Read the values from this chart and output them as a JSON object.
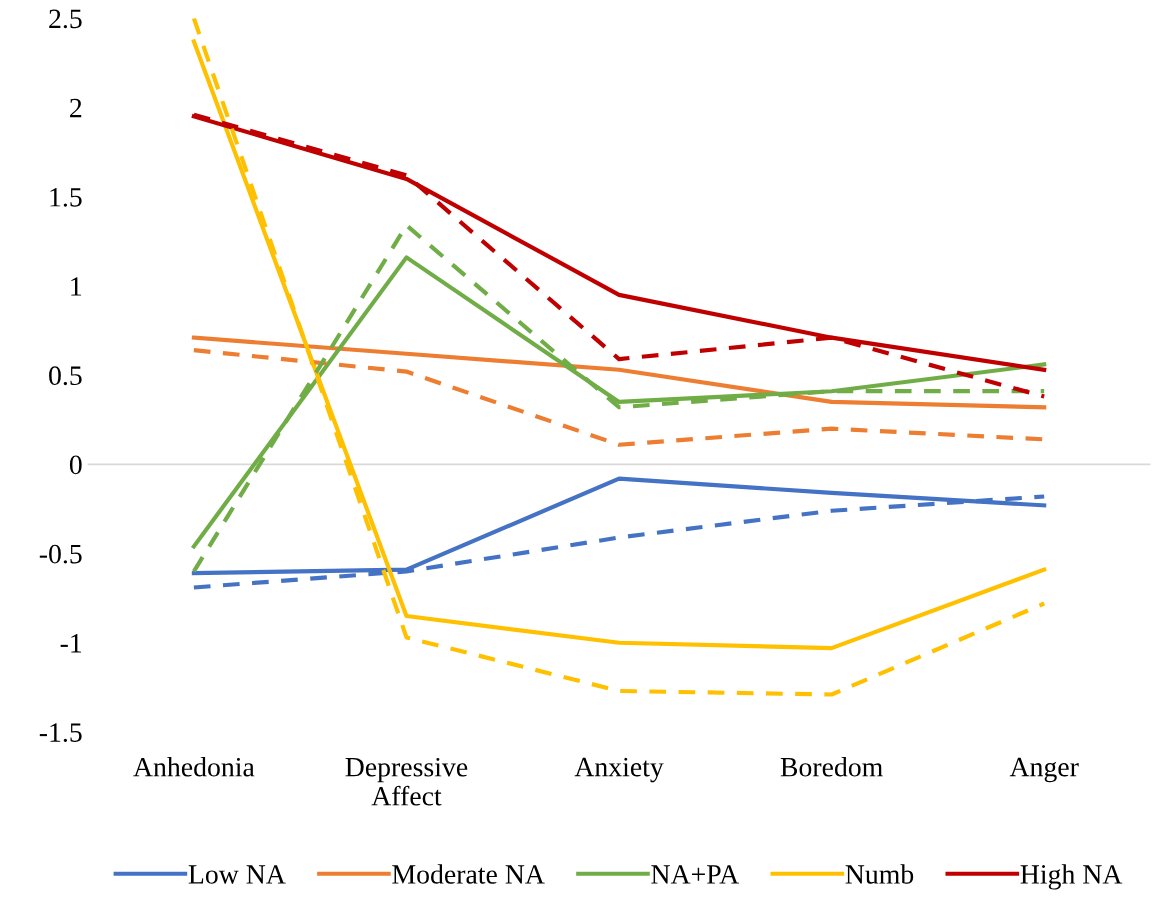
{
  "chart_data": {
    "type": "line",
    "categories": [
      "Anhedonia",
      "Depressive\nAffect",
      "Anxiety",
      "Boredom",
      "Anger"
    ],
    "series": [
      {
        "name": "Low NA",
        "color": "#4472c4",
        "line_style": "solid",
        "values": [
          -0.61,
          -0.59,
          -0.08,
          -0.16,
          -0.23
        ]
      },
      {
        "name": "Moderate NA",
        "color": "#ed7d31",
        "line_style": "solid",
        "values": [
          0.71,
          0.62,
          0.53,
          0.35,
          0.32
        ]
      },
      {
        "name": "NA+PA",
        "color": "#70ad47",
        "line_style": "solid",
        "values": [
          -0.46,
          1.16,
          0.35,
          0.41,
          0.56
        ]
      },
      {
        "name": "Numb",
        "color": "#ffc000",
        "line_style": "solid",
        "values": [
          2.37,
          -0.85,
          -1.0,
          -1.03,
          -0.59
        ]
      },
      {
        "name": "High NA",
        "color": "#c00000",
        "line_style": "solid",
        "values": [
          1.95,
          1.6,
          0.95,
          0.71,
          0.53
        ]
      },
      {
        "color": "#4472c4",
        "line_style": "dashed",
        "values": [
          -0.69,
          -0.6,
          -0.41,
          -0.26,
          -0.18
        ]
      },
      {
        "color": "#ed7d31",
        "line_style": "dashed",
        "values": [
          0.64,
          0.52,
          0.11,
          0.2,
          0.14
        ]
      },
      {
        "color": "#70ad47",
        "line_style": "dashed",
        "values": [
          -0.6,
          1.34,
          0.32,
          0.41,
          0.41
        ]
      },
      {
        "color": "#ffc000",
        "line_style": "dashed",
        "values": [
          2.5,
          -0.97,
          -1.27,
          -1.29,
          -0.78
        ]
      },
      {
        "color": "#c00000",
        "line_style": "dashed",
        "values": [
          1.96,
          1.62,
          0.59,
          0.71,
          0.38
        ]
      }
    ],
    "ylim": [
      -1.5,
      2.5
    ],
    "yticks": [
      -1.5,
      -1,
      -0.5,
      0,
      0.5,
      1,
      1.5,
      2,
      2.5
    ],
    "ref_lines": [
      {
        "axis": "y",
        "value": 0,
        "label": null,
        "color": "#d9d9d9"
      }
    ],
    "grid": false,
    "legend": "bottom",
    "marker": "none"
  }
}
